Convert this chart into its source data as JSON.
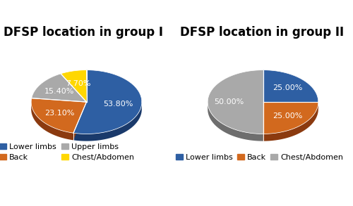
{
  "group1": {
    "title": "DFSP location in group I",
    "labels": [
      "Lower limbs",
      "Back",
      "Upper limbs",
      "Chest/Abdomen"
    ],
    "values": [
      53.8,
      23.1,
      15.4,
      7.7
    ],
    "colors": [
      "#2E5FA3",
      "#D2691E",
      "#A9A9A9",
      "#FFD700"
    ],
    "dark_colors": [
      "#1A3A6B",
      "#8B3A0F",
      "#6E6E6E",
      "#B8960C"
    ],
    "pct_labels": [
      "53.80%",
      "23.10%",
      "15.40%",
      "7.70%"
    ],
    "startangle": 90,
    "label_colors": [
      "white",
      "white",
      "white",
      "white"
    ],
    "label_r": [
      0.58,
      0.6,
      0.6,
      0.6
    ]
  },
  "group2": {
    "title": "DFSP location in group II",
    "labels": [
      "Lower limbs",
      "Back",
      "Chest/Abdomen"
    ],
    "values": [
      25.0,
      25.0,
      50.0
    ],
    "colors": [
      "#2E5FA3",
      "#D2691E",
      "#A9A9A9"
    ],
    "dark_colors": [
      "#1A3A6B",
      "#8B3A0F",
      "#6E6E6E"
    ],
    "pct_labels": [
      "25.00%",
      "25.00%",
      "50.00%"
    ],
    "startangle": 90,
    "label_colors": [
      "white",
      "white",
      "white"
    ],
    "label_r": [
      0.62,
      0.62,
      0.62
    ]
  },
  "background_color": "#ffffff",
  "title_fontsize": 12,
  "label_fontsize": 8,
  "legend_fontsize": 8,
  "yscale": 0.58,
  "depth": 0.13
}
